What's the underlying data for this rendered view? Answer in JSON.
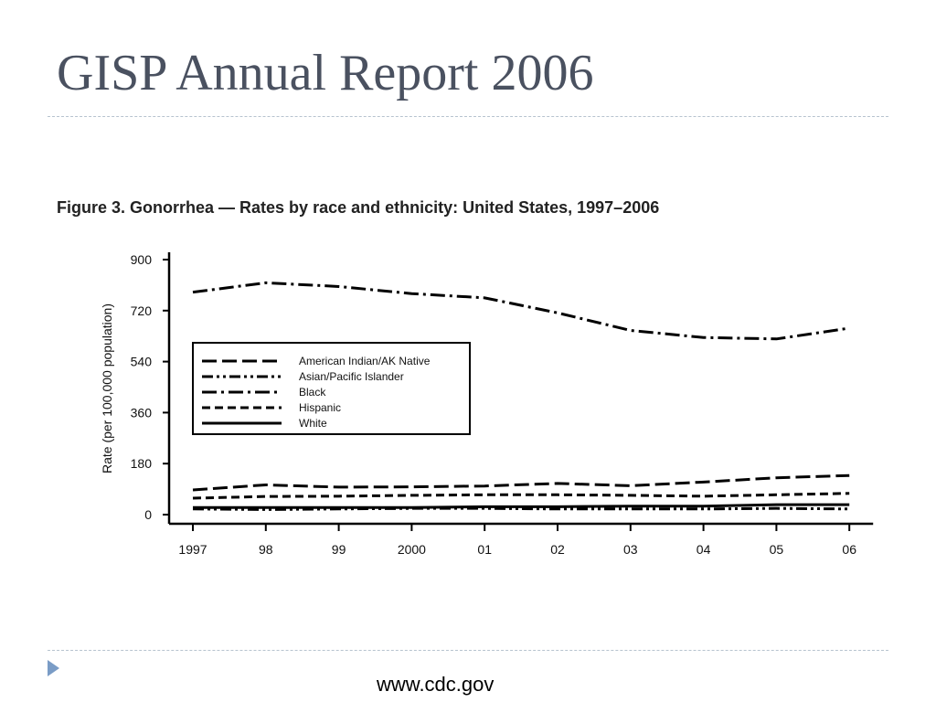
{
  "slide": {
    "title": "GISP Annual Report 2006",
    "figure_caption": "Figure 3. Gonorrhea — Rates by race and ethnicity: United States, 1997–2006",
    "footer_url": "www.cdc.gov",
    "bullet_icon": "triangle-bullet-icon",
    "bullet_color": "#7a9cc6",
    "title_color": "#4a5160"
  },
  "chart_data": {
    "type": "line",
    "title": "Figure 3. Gonorrhea — Rates by race and ethnicity: United States, 1997–2006",
    "xlabel": "",
    "ylabel": "Rate (per 100,000 population)",
    "categories": [
      "1997",
      "98",
      "99",
      "2000",
      "01",
      "02",
      "03",
      "04",
      "05",
      "06"
    ],
    "yticks": [
      0,
      180,
      360,
      540,
      720,
      900
    ],
    "ylim": [
      0,
      900
    ],
    "grid": false,
    "legend_position": "upper-left",
    "series": [
      {
        "name": "American Indian/AK Native",
        "dash": "long-dash",
        "values": [
          87,
          105,
          97,
          98,
          101,
          110,
          102,
          115,
          130,
          138
        ]
      },
      {
        "name": "Asian/Pacific Islander",
        "dash": "dash-dot-dot",
        "values": [
          20,
          18,
          20,
          22,
          22,
          20,
          20,
          20,
          22,
          20
        ]
      },
      {
        "name": "Black",
        "dash": "dash-dot",
        "values": [
          785,
          818,
          805,
          780,
          765,
          712,
          650,
          625,
          620,
          658
        ]
      },
      {
        "name": "Hispanic",
        "dash": "dash",
        "values": [
          58,
          64,
          65,
          68,
          70,
          70,
          68,
          65,
          70,
          75
        ]
      },
      {
        "name": "White",
        "dash": "solid",
        "values": [
          25,
          25,
          25,
          25,
          28,
          28,
          30,
          30,
          35,
          35
        ]
      }
    ]
  }
}
